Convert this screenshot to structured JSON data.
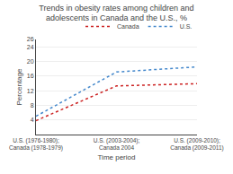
{
  "chart_data": {
    "type": "line",
    "title": "Trends in obesity rates among children and adolescents in Canada and the U.S., %",
    "xlabel": "Time period",
    "ylabel": "Percentage",
    "categories": [
      "U.S. (1976-1980); Canada (1978-1979)",
      "U.S. (2003-2004); Canada 2004",
      "U.S. (2009-2010); Canada (2009-2011)"
    ],
    "series": [
      {
        "name": "Canada",
        "color": "#cc2222",
        "line_style": "dotted",
        "values": [
          3.8,
          13.3,
          13.9
        ]
      },
      {
        "name": "U.S.",
        "color": "#4488cc",
        "line_style": "dotted",
        "values": [
          5.0,
          17.1,
          18.5
        ]
      }
    ],
    "ylim": [
      0,
      26
    ],
    "yticks": [
      4,
      8,
      12,
      16,
      20,
      24,
      26
    ],
    "grid": true,
    "legend": "upper right"
  }
}
